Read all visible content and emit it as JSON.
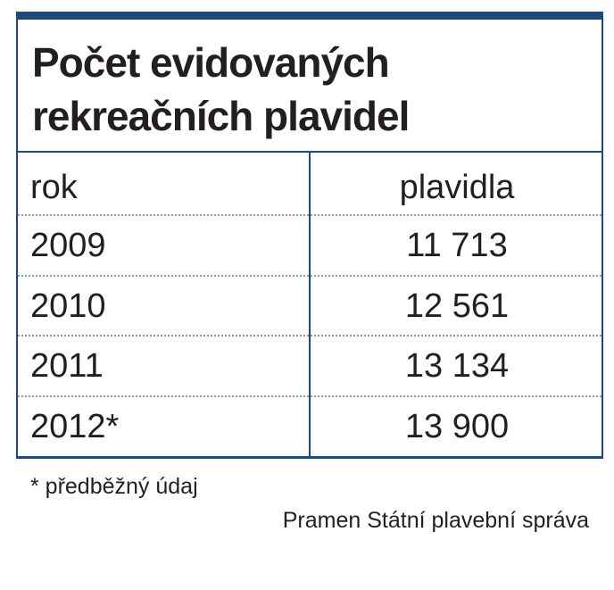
{
  "header": {
    "title_lines": [
      "Počet evidovaných",
      "rekreačních plavidel"
    ]
  },
  "table": {
    "columns": [
      "rok",
      "plavidla"
    ],
    "rows": [
      [
        "2009",
        "11 713"
      ],
      [
        "2010",
        "12 561"
      ],
      [
        "2011",
        "13 134"
      ],
      [
        "2012*",
        "13 900"
      ]
    ]
  },
  "footer": {
    "note": "* předběžný údaj",
    "source": "Pramen Státní plavební správa"
  }
}
